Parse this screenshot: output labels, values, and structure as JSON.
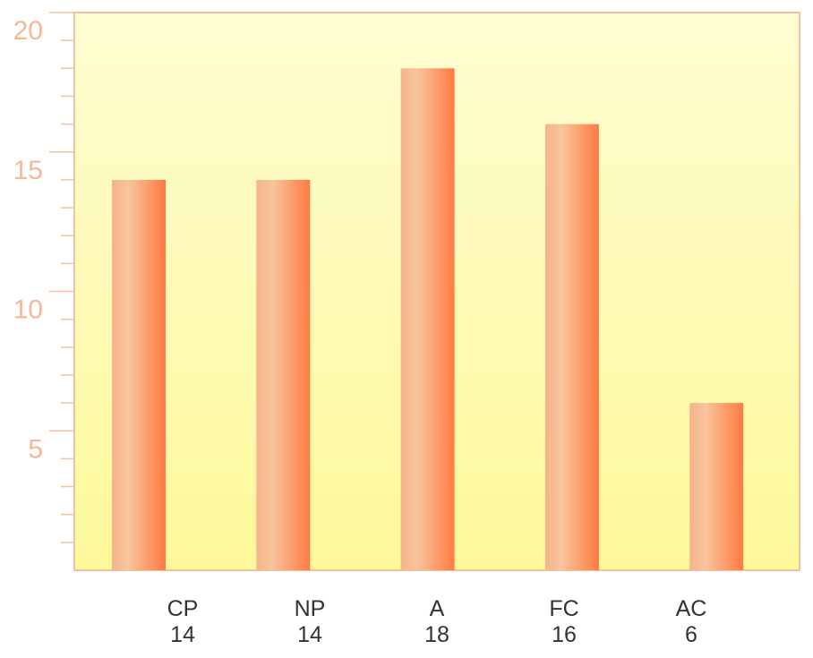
{
  "chart_data": {
    "type": "bar",
    "categories": [
      "CP",
      "NP",
      "A",
      "FC",
      "AC"
    ],
    "values": [
      14,
      14,
      18,
      16,
      6
    ],
    "color": "#ff7a42",
    "ylim": [
      0,
      20
    ],
    "yticks": [
      5,
      10,
      15,
      20
    ],
    "yticks_minor": [
      1,
      2,
      3,
      4,
      6,
      7,
      8,
      9,
      11,
      12,
      13,
      14,
      16,
      17,
      18,
      19
    ]
  }
}
